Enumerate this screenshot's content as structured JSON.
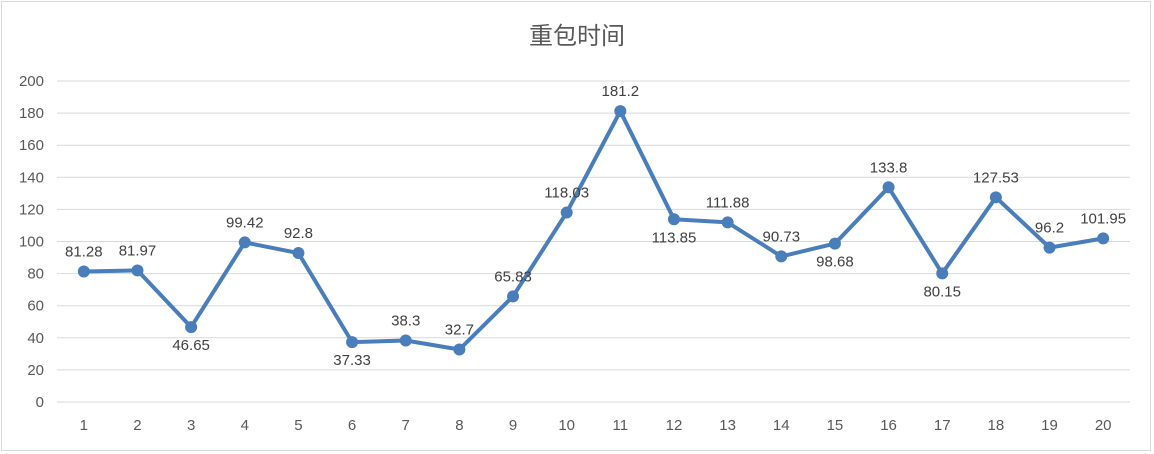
{
  "chart_data": {
    "type": "line",
    "title": "重包时间",
    "xlabel": "",
    "ylabel": "",
    "x": [
      "1",
      "2",
      "3",
      "4",
      "5",
      "6",
      "7",
      "8",
      "9",
      "10",
      "11",
      "12",
      "13",
      "14",
      "15",
      "16",
      "17",
      "18",
      "19",
      "20"
    ],
    "series": [
      {
        "values": [
          81.28,
          81.97,
          46.65,
          99.42,
          92.8,
          37.33,
          38.3,
          32.7,
          65.83,
          118.03,
          181.2,
          113.85,
          111.88,
          90.73,
          98.68,
          133.8,
          80.15,
          127.53,
          96.2,
          101.95
        ],
        "labels": [
          "81.28",
          "81.97",
          "46.65",
          "99.42",
          "92.8",
          "37.33",
          "38.3",
          "32.7",
          "65.83",
          "118.03",
          "181.2",
          "113.85",
          "111.88",
          "90.73",
          "98.68",
          "133.8",
          "80.15",
          "127.53",
          "96.2",
          "101.95"
        ],
        "label_positions": [
          "above",
          "above",
          "below",
          "above",
          "above",
          "below",
          "above",
          "above",
          "above",
          "above",
          "above",
          "below",
          "above",
          "above",
          "below",
          "above",
          "below",
          "above",
          "above",
          "above"
        ]
      }
    ],
    "ylim": [
      0,
      200
    ],
    "yticks": [
      0,
      20,
      40,
      60,
      80,
      100,
      120,
      140,
      160,
      180,
      200
    ],
    "grid": true,
    "legend": "none",
    "colors": {
      "line": "#4a7ebb",
      "grid": "#d9d9d9",
      "text": "#595959"
    }
  }
}
